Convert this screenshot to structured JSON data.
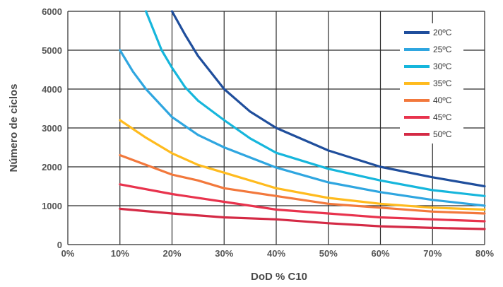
{
  "chart_data": {
    "type": "line",
    "title": "",
    "xlabel": "DoD % C10",
    "ylabel": "Número de ciclos",
    "xlim": [
      0,
      80
    ],
    "ylim": [
      0,
      6000
    ],
    "x_ticks": [
      "0%",
      "10%",
      "20%",
      "30%",
      "40%",
      "50%",
      "60%",
      "70%",
      "80%"
    ],
    "y_ticks": [
      "0",
      "1000",
      "2000",
      "3000",
      "4000",
      "5000",
      "6000"
    ],
    "grid": true,
    "legend_position": "top-right",
    "series": [
      {
        "name": "20ºC",
        "color": "#1f4e9c",
        "x": [
          20,
          22.5,
          25,
          30,
          35,
          40,
          50,
          60,
          70,
          80
        ],
        "y": [
          6000,
          5400,
          4850,
          4000,
          3420,
          3000,
          2420,
          2000,
          1730,
          1500
        ]
      },
      {
        "name": "25ºC",
        "color": "#2fa6e0",
        "x": [
          10,
          12.5,
          15,
          20,
          25,
          30,
          40,
          50,
          60,
          70,
          80
        ],
        "y": [
          5000,
          4450,
          4000,
          3280,
          2820,
          2500,
          1980,
          1600,
          1350,
          1150,
          1000
        ]
      },
      {
        "name": "30ºC",
        "color": "#16b6dc",
        "x": [
          15,
          16.5,
          18,
          20,
          22.5,
          25,
          30,
          35,
          40,
          50,
          60,
          70,
          80
        ],
        "y": [
          6000,
          5500,
          5000,
          4550,
          4050,
          3700,
          3200,
          2730,
          2360,
          1950,
          1650,
          1400,
          1250
        ]
      },
      {
        "name": "35ºC",
        "color": "#ffbb1e",
        "x": [
          10,
          15,
          20,
          25,
          30,
          40,
          50,
          60,
          70,
          80
        ],
        "y": [
          3200,
          2750,
          2350,
          2050,
          1850,
          1450,
          1200,
          1050,
          950,
          900
        ]
      },
      {
        "name": "40ºC",
        "color": "#f2783c",
        "x": [
          10,
          15,
          20,
          25,
          30,
          40,
          50,
          60,
          70,
          80
        ],
        "y": [
          2300,
          2050,
          1800,
          1650,
          1450,
          1250,
          1050,
          950,
          850,
          800
        ]
      },
      {
        "name": "45ºC",
        "color": "#e8334d",
        "x": [
          10,
          20,
          30,
          40,
          50,
          60,
          70,
          80
        ],
        "y": [
          1550,
          1300,
          1100,
          900,
          800,
          700,
          650,
          600
        ]
      },
      {
        "name": "50ºC",
        "color": "#d42a45",
        "x": [
          10,
          20,
          30,
          40,
          50,
          60,
          70,
          80
        ],
        "y": [
          920,
          800,
          700,
          650,
          550,
          470,
          430,
          400
        ]
      }
    ]
  }
}
